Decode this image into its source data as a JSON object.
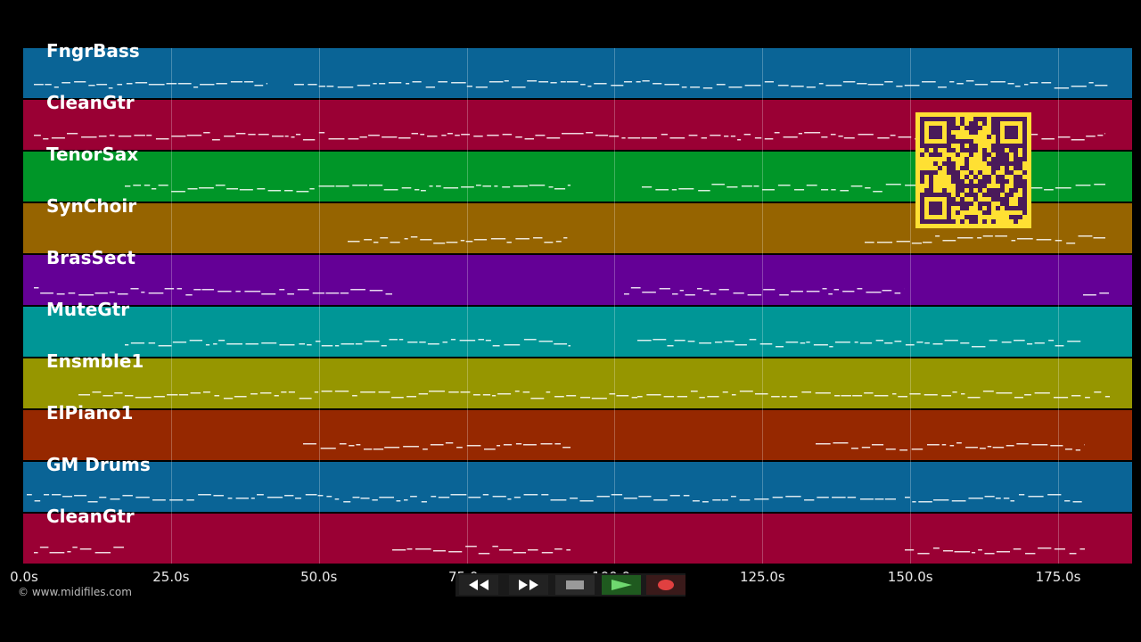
{
  "tracks": [
    {
      "name": "FngrBass",
      "color": "#0a6496"
    },
    {
      "name": "CleanGtr",
      "color": "#9a0034"
    },
    {
      "name": "TenorSax",
      "color": "#009628"
    },
    {
      "name": "SynChoir",
      "color": "#966400"
    },
    {
      "name": "BrasSect",
      "color": "#640096"
    },
    {
      "name": "MuteGtr",
      "color": "#009696"
    },
    {
      "name": "Ensmble1",
      "color": "#969600"
    },
    {
      "name": "ElPiano1",
      "color": "#962800"
    },
    {
      "name": "GM Drums",
      "color": "#0a6496"
    },
    {
      "name": "CleanGtr",
      "color": "#9a0034"
    }
  ],
  "timeline": {
    "ticks": [
      "0.0s",
      "25.0s",
      "50.0s",
      "75.0s",
      "100.0s",
      "125.0s",
      "150.0s",
      "175.0s"
    ],
    "tick_seconds": [
      0,
      25,
      50,
      75,
      100,
      125,
      150,
      175
    ],
    "max_seconds": 187.5
  },
  "copyright": "© www.midifiles.com",
  "transport": {
    "buttons": [
      {
        "name": "rewind-button",
        "icon": "double-left-arrow-icon"
      },
      {
        "name": "fast-forward-button",
        "icon": "double-right-arrow-icon"
      },
      {
        "name": "stop-button",
        "icon": "stop-square-icon"
      },
      {
        "name": "play-button",
        "icon": "play-triangle-icon"
      },
      {
        "name": "record-button",
        "icon": "record-circle-icon"
      }
    ]
  },
  "qr_code": {
    "icon": "qr-code-icon",
    "color": "#ffe033",
    "dark": "#4a1a5a"
  }
}
